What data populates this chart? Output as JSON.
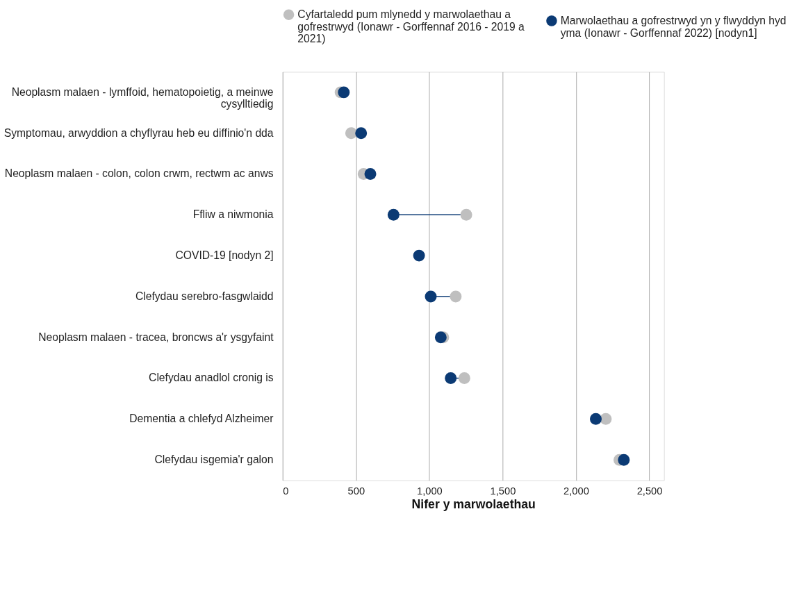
{
  "chart_data": {
    "type": "scatter",
    "orientation": "horizontal",
    "xlabel": "Nifer y marwolaethau",
    "categories": [
      "Neoplasm malaen - lymffoid, hematopoietig, a meinwe cysylltiedig",
      "Symptomau, arwyddion a chyflyrau heb eu diffinio'n dda",
      "Neoplasm malaen - colon, colon crwm, rectwm ac anws",
      "Ffliw a niwmonia",
      "COVID-19 [nodyn 2]",
      "Clefydau serebro-fasgwlaidd",
      "Neoplasm malaen - tracea, broncws a'r ysgyfaint",
      "Clefydau anadlol cronig is",
      "Dementia a chlefyd Alzheimer",
      "Clefydau isgemia'r galon"
    ],
    "series": [
      {
        "name": "Cyfartaledd pum mlynedd y marwolaethau a gofrestrwyd (Ionawr - Gorffennaf 2016 - 2019 a 2021)",
        "color": "#bfbfbf",
        "values": [
          395,
          467,
          552,
          1252,
          null,
          1180,
          1095,
          1239,
          2203,
          2296
        ]
      },
      {
        "name": "Marwolaethau a gofrestrwyd yn y flwyddyn hyd yma (Ionawr - Gorffennaf 2022) [nodyn1]",
        "color": "#0b3a74",
        "values": [
          417,
          535,
          598,
          756,
          930,
          1010,
          1078,
          1146,
          2135,
          2326
        ]
      }
    ],
    "xlim": [
      0,
      2600
    ],
    "xticks": [
      0,
      500,
      {
        "value": 1000,
        "label": "1,000"
      },
      {
        "value": 1500,
        "label": "1,500"
      },
      {
        "value": 2000,
        "label": "2,000"
      },
      {
        "value": 2500,
        "label": "2,500"
      }
    ],
    "grid": "x",
    "legend": "top",
    "marker": "circle"
  }
}
